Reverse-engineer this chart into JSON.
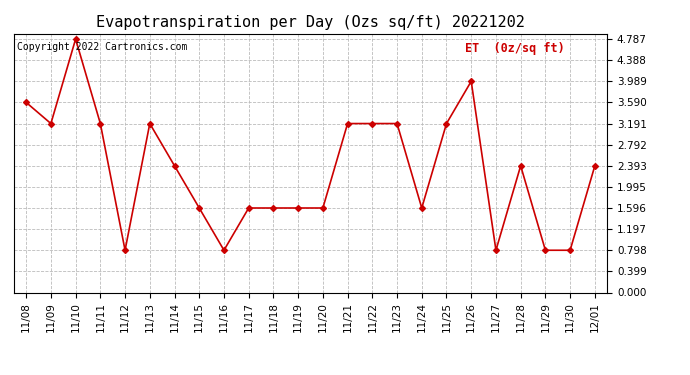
{
  "title": "Evapotranspiration per Day (Ozs sq/ft) 20221202",
  "copyright_text": "Copyright 2022 Cartronics.com",
  "legend_label": "ET  (0z/sq ft)",
  "x_labels": [
    "11/08",
    "11/09",
    "11/10",
    "11/11",
    "11/12",
    "11/13",
    "11/14",
    "11/15",
    "11/16",
    "11/17",
    "11/18",
    "11/19",
    "11/20",
    "11/21",
    "11/22",
    "11/23",
    "11/24",
    "11/25",
    "11/26",
    "11/27",
    "11/28",
    "11/29",
    "11/30",
    "12/01"
  ],
  "y_values": [
    3.59,
    3.191,
    4.787,
    3.191,
    0.798,
    3.191,
    2.393,
    1.596,
    0.798,
    1.596,
    1.596,
    1.596,
    1.596,
    3.191,
    3.191,
    3.191,
    1.596,
    3.191,
    3.989,
    0.798,
    2.393,
    0.798,
    0.798,
    2.393
  ],
  "y_ticks": [
    0.0,
    0.399,
    0.798,
    1.197,
    1.596,
    1.995,
    2.393,
    2.792,
    3.191,
    3.59,
    3.989,
    4.388,
    4.787
  ],
  "line_color": "#cc0000",
  "marker_color": "#cc0000",
  "background_color": "#ffffff",
  "grid_color": "#bbbbbb",
  "title_color": "#000000",
  "copyright_color": "#000000",
  "legend_color": "#cc0000",
  "ylim_min": 0.0,
  "ylim_max": 4.787,
  "title_fontsize": 11,
  "axis_fontsize": 7.5,
  "legend_fontsize": 8.5,
  "copyright_fontsize": 7
}
